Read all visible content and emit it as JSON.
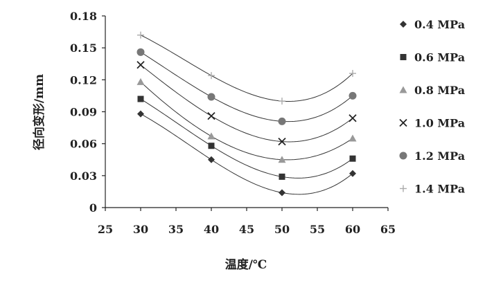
{
  "chart_data": {
    "type": "scatter",
    "title": "",
    "xlabel": "温度/℃",
    "ylabel": "径向变形/mm",
    "xlim": [
      25,
      65
    ],
    "ylim": [
      0,
      0.18
    ],
    "x_ticks": [
      "25",
      "30",
      "35",
      "40",
      "45",
      "50",
      "55",
      "60",
      "65"
    ],
    "y_ticks": [
      "0",
      "0.03",
      "0.06",
      "0.09",
      "0.12",
      "0.15",
      "0.18"
    ],
    "x": [
      30,
      40,
      50,
      60
    ],
    "grid": false,
    "legend_position": "right",
    "trendline": "polynomial",
    "series": [
      {
        "name": "0.4 MPa",
        "marker": "diamond",
        "values": [
          0.088,
          0.045,
          0.014,
          0.032
        ]
      },
      {
        "name": "0.6 MPa",
        "marker": "square",
        "values": [
          0.102,
          0.058,
          0.029,
          0.046
        ]
      },
      {
        "name": "0.8 MPa",
        "marker": "triangle",
        "values": [
          0.118,
          0.067,
          0.045,
          0.065
        ]
      },
      {
        "name": "1.0 MPa",
        "marker": "cross",
        "values": [
          0.134,
          0.086,
          0.062,
          0.084
        ]
      },
      {
        "name": "1.2 MPa",
        "marker": "circle",
        "values": [
          0.146,
          0.104,
          0.081,
          0.105
        ]
      },
      {
        "name": "1.4 MPa",
        "marker": "plus",
        "values": [
          0.162,
          0.124,
          0.1,
          0.126
        ]
      }
    ],
    "colors": {
      "axis": "#222222",
      "curve": "#333333",
      "markers": [
        "#333333",
        "#333333",
        "#999999",
        "#222222",
        "#777777",
        "#aaaaaa"
      ]
    }
  }
}
